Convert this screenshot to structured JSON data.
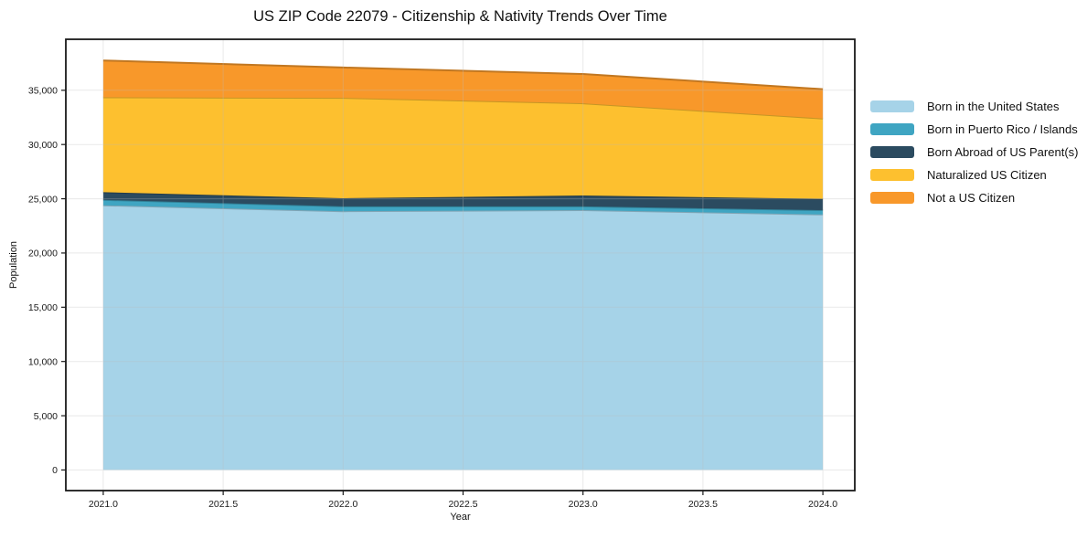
{
  "chart_data": {
    "type": "area",
    "stacked": true,
    "title": "US ZIP Code 22079 - Citizenship & Nativity Trends Over Time",
    "xlabel": "Year",
    "ylabel": "Population",
    "x": [
      2021,
      2022,
      2023,
      2024
    ],
    "series": [
      {
        "name": "Born in the United States",
        "color": "#a6d3e8",
        "values": [
          24400,
          23850,
          23950,
          23550
        ]
      },
      {
        "name": "Born in Puerto Rico / Islands",
        "color": "#3fa5c2",
        "values": [
          500,
          450,
          350,
          400
        ]
      },
      {
        "name": "Born Abroad of US Parent(s)",
        "color": "#2b4b60",
        "values": [
          700,
          750,
          1000,
          1050
        ]
      },
      {
        "name": "Naturalized US Citizen",
        "color": "#fdc02f",
        "values": [
          8750,
          9250,
          8500,
          7400
        ]
      },
      {
        "name": "Not a US Citizen",
        "color": "#f8982a",
        "values": [
          3400,
          2800,
          2700,
          2700
        ]
      }
    ],
    "stack_totals": [
      37750,
      37100,
      36500,
      35100
    ],
    "xticks": [
      2021.0,
      2021.5,
      2022.0,
      2022.5,
      2023.0,
      2023.5,
      2024.0
    ],
    "xtick_labels": [
      "2021.0",
      "2021.5",
      "2022.0",
      "2022.5",
      "2023.0",
      "2023.5",
      "2024.0"
    ],
    "yticks": [
      0,
      5000,
      10000,
      15000,
      20000,
      25000,
      30000,
      35000
    ],
    "ytick_labels": [
      "0",
      "5,000",
      "10,000",
      "15,000",
      "20,000",
      "25,000",
      "30,000",
      "35,000"
    ],
    "xlim": [
      2020.844,
      2024.133
    ],
    "ylim": [
      -1900,
      39700
    ],
    "grid": true,
    "legend_position": "right-outside",
    "colors": {
      "spine": "#1a1a1a",
      "gridline": "#bbbbbb",
      "background": "#ffffff"
    }
  }
}
